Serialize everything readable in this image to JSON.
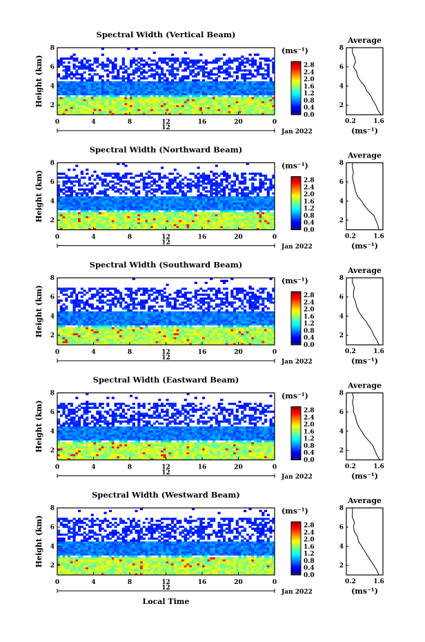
{
  "figure": {
    "xlabel": "Local Time",
    "date_label": "Jan 2022",
    "day_label": "12",
    "cbar_unit": "(ms⁻¹)",
    "avg_title": "Average",
    "avg_xlabel": "(ms⁻¹)"
  },
  "chart_data": [
    {
      "type": "heatmap",
      "title": "Spectral Width (Vertical Beam)",
      "ylabel": "Height (km)",
      "x_ticks": [
        "0",
        "4",
        "8",
        "12",
        "16",
        "20",
        "0"
      ],
      "xlim": [
        0,
        24
      ],
      "y_ticks": [
        "2",
        "4",
        "6",
        "8"
      ],
      "ylim": [
        1,
        8
      ],
      "colorbar": {
        "ticks": [
          "0.0",
          "0.4",
          "0.8",
          "1.2",
          "1.6",
          "2.0",
          "2.4",
          "2.8"
        ],
        "range": [
          0,
          3.0
        ]
      },
      "average_profile": {
        "x_ticks": [
          "0.2",
          "1.6"
        ],
        "xlim": [
          0,
          1.8
        ],
        "ylim": [
          1,
          8
        ],
        "height": [
          1.0,
          1.5,
          2.0,
          2.5,
          3.0,
          3.5,
          4.0,
          4.5,
          5.0,
          5.5,
          6.0,
          6.5,
          7.0,
          7.5,
          8.0
        ],
        "width": [
          1.7,
          1.55,
          1.45,
          1.3,
          1.2,
          1.0,
          0.9,
          0.7,
          0.55,
          0.5,
          0.35,
          0.45,
          0.4,
          0.3,
          0.3
        ]
      }
    },
    {
      "type": "heatmap",
      "title": "Spectral Width (Northward Beam)",
      "ylabel": "Height (km)",
      "x_ticks": [
        "0",
        "4",
        "8",
        "12",
        "16",
        "20",
        "0"
      ],
      "xlim": [
        0,
        24
      ],
      "y_ticks": [
        "2",
        "4",
        "6",
        "8"
      ],
      "ylim": [
        1,
        8
      ],
      "colorbar": {
        "ticks": [
          "0.0",
          "0.4",
          "0.8",
          "1.2",
          "1.6",
          "2.0",
          "2.4",
          "2.8"
        ],
        "range": [
          0,
          3.0
        ]
      },
      "average_profile": {
        "x_ticks": [
          "0.2",
          "1.6"
        ],
        "xlim": [
          0,
          1.8
        ],
        "ylim": [
          1,
          8
        ],
        "height": [
          1.0,
          1.5,
          2.0,
          2.5,
          3.0,
          3.5,
          4.0,
          4.5,
          5.0,
          5.5,
          6.0,
          6.5,
          7.0,
          7.5,
          8.0
        ],
        "width": [
          1.6,
          1.55,
          1.45,
          1.35,
          1.1,
          0.9,
          0.75,
          0.55,
          0.45,
          0.4,
          0.35,
          0.3,
          0.35,
          0.3,
          0.3
        ]
      }
    },
    {
      "type": "heatmap",
      "title": "Spectral Width (Southward Beam)",
      "ylabel": "Height (km)",
      "x_ticks": [
        "0",
        "4",
        "8",
        "12",
        "16",
        "20",
        "0"
      ],
      "xlim": [
        0,
        24
      ],
      "y_ticks": [
        "2",
        "4",
        "6",
        "8"
      ],
      "ylim": [
        1,
        8
      ],
      "colorbar": {
        "ticks": [
          "0.0",
          "0.4",
          "0.8",
          "1.2",
          "1.6",
          "2.0",
          "2.4",
          "2.8"
        ],
        "range": [
          0,
          3.0
        ]
      },
      "average_profile": {
        "x_ticks": [
          "0.2",
          "1.6"
        ],
        "xlim": [
          0,
          1.8
        ],
        "ylim": [
          1,
          8
        ],
        "height": [
          1.0,
          1.5,
          2.0,
          2.5,
          3.0,
          3.5,
          4.0,
          4.5,
          5.0,
          5.5,
          6.0,
          6.5,
          7.0,
          7.5,
          8.0
        ],
        "width": [
          1.6,
          1.5,
          1.35,
          1.25,
          1.1,
          0.95,
          0.75,
          0.6,
          0.5,
          0.45,
          0.35,
          0.35,
          0.4,
          0.3,
          0.3
        ]
      }
    },
    {
      "type": "heatmap",
      "title": "Spectral Width (Eastward Beam)",
      "ylabel": "Height (km)",
      "x_ticks": [
        "0",
        "4",
        "8",
        "12",
        "16",
        "20",
        "0"
      ],
      "xlim": [
        0,
        24
      ],
      "y_ticks": [
        "2",
        "4",
        "6",
        "8"
      ],
      "ylim": [
        1,
        8
      ],
      "colorbar": {
        "ticks": [
          "0.0",
          "0.4",
          "0.8",
          "1.2",
          "1.6",
          "2.0",
          "2.4",
          "2.8"
        ],
        "range": [
          0,
          3.0
        ]
      },
      "average_profile": {
        "x_ticks": [
          "0.2",
          "1.6"
        ],
        "xlim": [
          0,
          1.8
        ],
        "ylim": [
          1,
          8
        ],
        "height": [
          1.0,
          1.5,
          2.0,
          2.5,
          3.0,
          3.5,
          4.0,
          4.5,
          5.0,
          5.5,
          6.0,
          6.5,
          7.0,
          7.5,
          8.0
        ],
        "width": [
          1.65,
          1.5,
          1.4,
          1.3,
          1.1,
          0.9,
          0.75,
          0.6,
          0.5,
          0.45,
          0.35,
          0.35,
          0.3,
          0.35,
          0.3
        ]
      }
    },
    {
      "type": "heatmap",
      "title": "Spectral Width (Westward Beam)",
      "ylabel": "Height (km)",
      "x_ticks": [
        "0",
        "4",
        "8",
        "12",
        "16",
        "20",
        "0"
      ],
      "xlim": [
        0,
        24
      ],
      "y_ticks": [
        "2",
        "4",
        "6",
        "8"
      ],
      "ylim": [
        1,
        8
      ],
      "colorbar": {
        "ticks": [
          "0.0",
          "0.4",
          "0.8",
          "1.2",
          "1.6",
          "2.0",
          "2.4",
          "2.8"
        ],
        "range": [
          0,
          3.0
        ]
      },
      "average_profile": {
        "x_ticks": [
          "0.2",
          "1.6"
        ],
        "xlim": [
          0,
          1.8
        ],
        "ylim": [
          1,
          8
        ],
        "height": [
          1.0,
          1.5,
          2.0,
          2.5,
          3.0,
          3.5,
          4.0,
          4.5,
          5.0,
          5.5,
          6.0,
          6.5,
          7.0,
          7.5,
          8.0
        ],
        "width": [
          1.6,
          1.5,
          1.35,
          1.2,
          1.05,
          0.9,
          0.75,
          0.6,
          0.55,
          0.4,
          0.35,
          0.4,
          0.3,
          0.3,
          0.3
        ]
      }
    }
  ]
}
